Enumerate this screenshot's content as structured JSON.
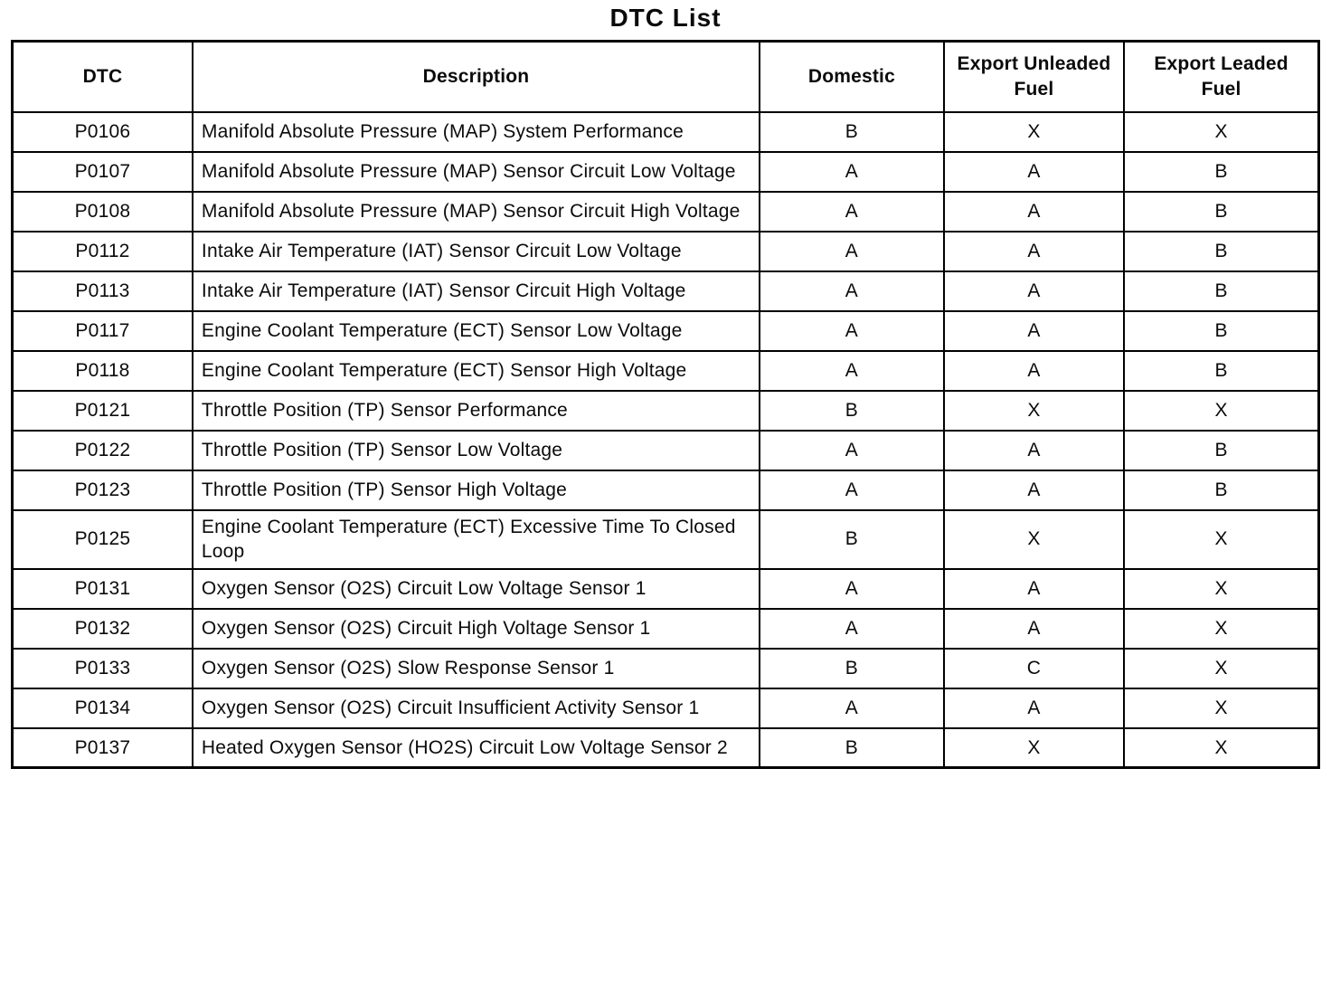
{
  "page": {
    "title": "DTC List"
  },
  "table": {
    "headers": [
      "DTC",
      "Description",
      "Domestic",
      "Export Unleaded Fuel",
      "Export Leaded Fuel"
    ],
    "rows": [
      {
        "dtc": "P0106",
        "description": "Manifold Absolute Pressure (MAP) System Performance",
        "domestic": "B",
        "export_unleaded": "X",
        "export_leaded": "X"
      },
      {
        "dtc": "P0107",
        "description": "Manifold Absolute Pressure (MAP) Sensor Circuit Low Voltage",
        "domestic": "A",
        "export_unleaded": "A",
        "export_leaded": "B"
      },
      {
        "dtc": "P0108",
        "description": "Manifold Absolute Pressure (MAP) Sensor Circuit High Voltage",
        "domestic": "A",
        "export_unleaded": "A",
        "export_leaded": "B"
      },
      {
        "dtc": "P0112",
        "description": "Intake Air Temperature (IAT) Sensor Circuit Low Voltage",
        "domestic": "A",
        "export_unleaded": "A",
        "export_leaded": "B"
      },
      {
        "dtc": "P0113",
        "description": "Intake Air Temperature (IAT) Sensor Circuit High Voltage",
        "domestic": "A",
        "export_unleaded": "A",
        "export_leaded": "B"
      },
      {
        "dtc": "P0117",
        "description": "Engine Coolant Temperature (ECT) Sensor Low Voltage",
        "domestic": "A",
        "export_unleaded": "A",
        "export_leaded": "B"
      },
      {
        "dtc": "P0118",
        "description": "Engine Coolant Temperature (ECT) Sensor High Voltage",
        "domestic": "A",
        "export_unleaded": "A",
        "export_leaded": "B"
      },
      {
        "dtc": "P0121",
        "description": "Throttle Position (TP) Sensor Performance",
        "domestic": "B",
        "export_unleaded": "X",
        "export_leaded": "X"
      },
      {
        "dtc": "P0122",
        "description": "Throttle Position (TP) Sensor Low Voltage",
        "domestic": "A",
        "export_unleaded": "A",
        "export_leaded": "B"
      },
      {
        "dtc": "P0123",
        "description": "Throttle Position (TP) Sensor High Voltage",
        "domestic": "A",
        "export_unleaded": "A",
        "export_leaded": "B"
      },
      {
        "dtc": "P0125",
        "description": "Engine Coolant Temperature (ECT) Excessive Time To Closed Loop",
        "domestic": "B",
        "export_unleaded": "X",
        "export_leaded": "X"
      },
      {
        "dtc": "P0131",
        "description": "Oxygen Sensor (O2S) Circuit Low Voltage Sensor 1",
        "domestic": "A",
        "export_unleaded": "A",
        "export_leaded": "X"
      },
      {
        "dtc": "P0132",
        "description": "Oxygen Sensor (O2S) Circuit High Voltage Sensor 1",
        "domestic": "A",
        "export_unleaded": "A",
        "export_leaded": "X"
      },
      {
        "dtc": "P0133",
        "description": "Oxygen Sensor (O2S) Slow Response Sensor 1",
        "domestic": "B",
        "export_unleaded": "C",
        "export_leaded": "X"
      },
      {
        "dtc": "P0134",
        "description": "Oxygen Sensor (O2S) Circuit Insufficient Activity Sensor 1",
        "domestic": "A",
        "export_unleaded": "A",
        "export_leaded": "X"
      },
      {
        "dtc": "P0137",
        "description": "Heated Oxygen Sensor (HO2S) Circuit Low Voltage Sensor 2",
        "domestic": "B",
        "export_unleaded": "X",
        "export_leaded": "X"
      }
    ]
  }
}
